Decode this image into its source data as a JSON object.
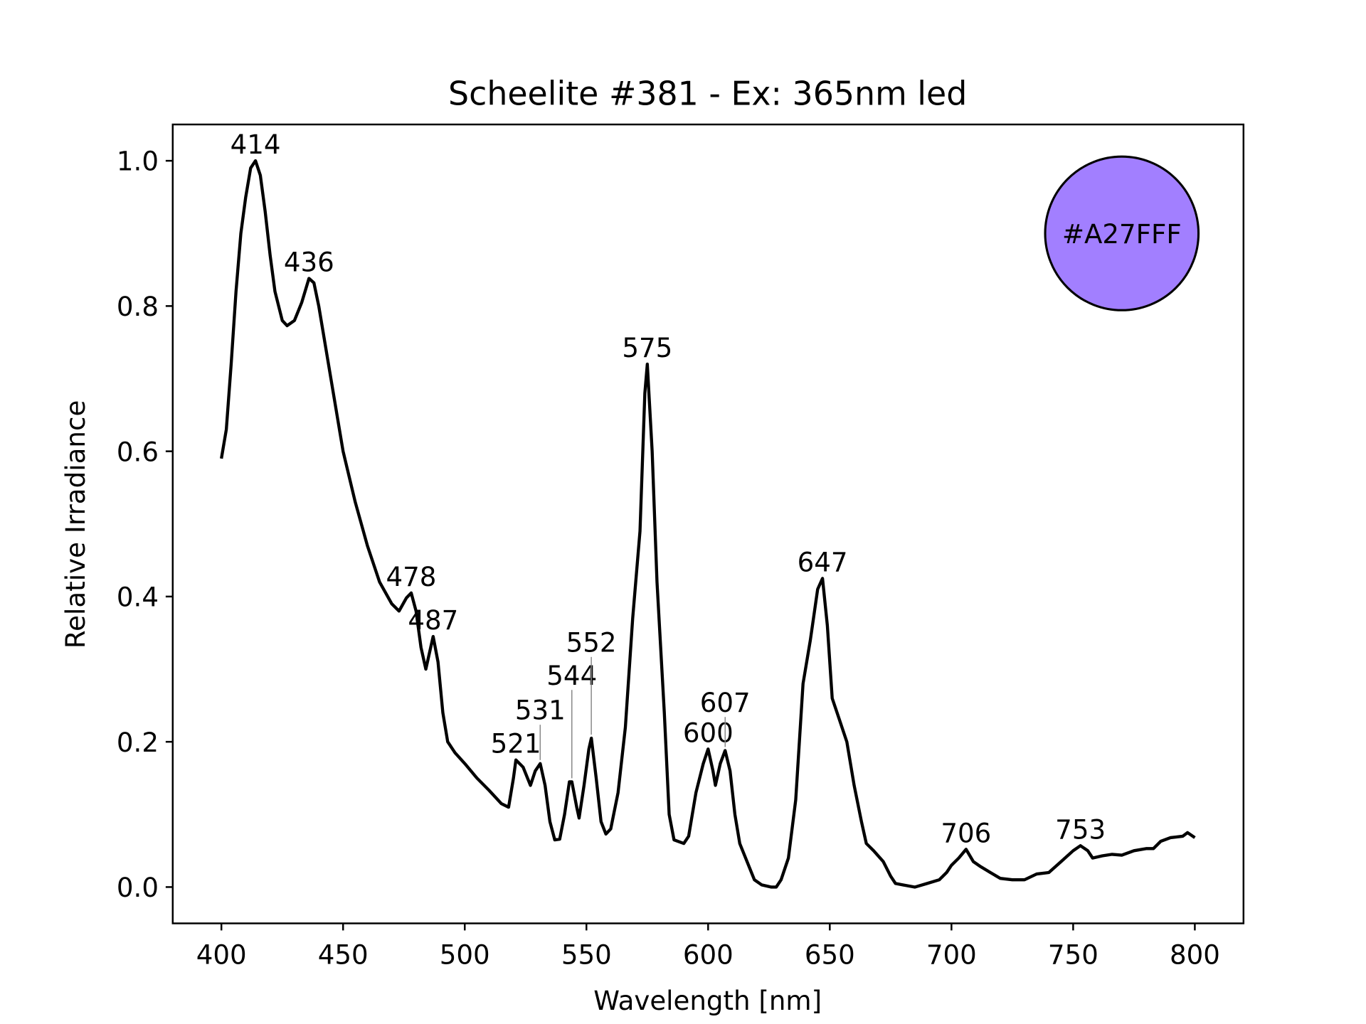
{
  "chart_data": {
    "type": "line",
    "title": "Scheelite #381 - Ex: 365nm led",
    "xlabel": "Wavelength [nm]",
    "ylabel": "Relative Irradiance",
    "xlim": [
      380,
      820
    ],
    "ylim": [
      -0.05,
      1.05
    ],
    "xticks": [
      400,
      450,
      500,
      550,
      600,
      650,
      700,
      750,
      800
    ],
    "xtick_labels": [
      "400",
      "450",
      "500",
      "550",
      "600",
      "650",
      "700",
      "750",
      "800"
    ],
    "yticks": [
      0.0,
      0.2,
      0.4,
      0.6,
      0.8,
      1.0
    ],
    "ytick_labels": [
      "0.0",
      "0.2",
      "0.4",
      "0.6",
      "0.8",
      "1.0"
    ],
    "grid": false,
    "line_color": "#000000",
    "series": [
      {
        "name": "spectrum",
        "x": [
          400,
          402,
          404,
          406,
          408,
          410,
          412,
          414,
          416,
          418,
          420,
          422,
          425,
          427,
          430,
          433,
          436,
          438,
          440,
          445,
          450,
          455,
          460,
          465,
          470,
          473,
          476,
          478,
          480,
          482,
          484,
          486,
          487,
          489,
          491,
          493,
          496,
          500,
          505,
          510,
          515,
          518,
          520,
          521,
          524,
          527,
          529,
          531,
          533,
          535,
          537,
          539,
          541,
          543,
          544,
          546,
          547,
          549,
          551,
          552,
          554,
          556,
          558,
          560,
          563,
          566,
          569,
          572,
          574,
          575,
          577,
          579,
          582,
          584,
          586,
          590,
          592,
          595,
          598,
          600,
          602,
          603,
          605,
          607,
          609,
          611,
          613,
          616,
          619,
          622,
          626,
          628,
          630,
          633,
          636,
          639,
          642,
          645,
          647,
          649,
          651,
          654,
          657,
          660,
          663,
          665,
          668,
          672,
          675,
          677,
          680,
          685,
          690,
          695,
          698,
          700,
          703,
          706,
          709,
          712,
          716,
          720,
          725,
          730,
          735,
          740,
          745,
          750,
          753,
          756,
          758,
          762,
          766,
          770,
          775,
          780,
          783,
          786,
          790,
          795,
          797,
          800
        ],
        "y": [
          0.59,
          0.63,
          0.72,
          0.82,
          0.9,
          0.95,
          0.99,
          1.0,
          0.98,
          0.93,
          0.87,
          0.82,
          0.78,
          0.773,
          0.78,
          0.805,
          0.838,
          0.832,
          0.8,
          0.7,
          0.6,
          0.53,
          0.47,
          0.42,
          0.39,
          0.38,
          0.398,
          0.405,
          0.38,
          0.33,
          0.3,
          0.33,
          0.345,
          0.31,
          0.24,
          0.2,
          0.185,
          0.17,
          0.15,
          0.133,
          0.115,
          0.11,
          0.15,
          0.175,
          0.165,
          0.14,
          0.16,
          0.17,
          0.14,
          0.09,
          0.065,
          0.066,
          0.1,
          0.145,
          0.145,
          0.11,
          0.095,
          0.14,
          0.19,
          0.205,
          0.15,
          0.09,
          0.073,
          0.08,
          0.13,
          0.22,
          0.37,
          0.49,
          0.68,
          0.72,
          0.6,
          0.42,
          0.24,
          0.1,
          0.065,
          0.06,
          0.07,
          0.13,
          0.17,
          0.19,
          0.16,
          0.14,
          0.17,
          0.188,
          0.16,
          0.1,
          0.06,
          0.035,
          0.01,
          0.003,
          0.0,
          0.0,
          0.01,
          0.04,
          0.12,
          0.28,
          0.34,
          0.41,
          0.425,
          0.36,
          0.26,
          0.23,
          0.2,
          0.14,
          0.09,
          0.06,
          0.05,
          0.035,
          0.015,
          0.005,
          0.003,
          0.0,
          0.005,
          0.01,
          0.02,
          0.03,
          0.04,
          0.052,
          0.035,
          0.028,
          0.02,
          0.012,
          0.01,
          0.01,
          0.018,
          0.02,
          0.035,
          0.05,
          0.057,
          0.05,
          0.04,
          0.043,
          0.045,
          0.044,
          0.05,
          0.053,
          0.053,
          0.063,
          0.068,
          0.07,
          0.075,
          0.068
        ]
      }
    ],
    "peaks": [
      {
        "x": 414,
        "y": 1.0,
        "label": "414"
      },
      {
        "x": 436,
        "y": 0.838,
        "label": "436"
      },
      {
        "x": 478,
        "y": 0.405,
        "label": "478"
      },
      {
        "x": 487,
        "y": 0.345,
        "label": "487"
      },
      {
        "x": 521,
        "y": 0.175,
        "label": "521"
      },
      {
        "x": 531,
        "y": 0.17,
        "label": "531"
      },
      {
        "x": 544,
        "y": 0.145,
        "label": "544"
      },
      {
        "x": 552,
        "y": 0.205,
        "label": "552"
      },
      {
        "x": 575,
        "y": 0.72,
        "label": "575"
      },
      {
        "x": 600,
        "y": 0.19,
        "label": "600"
      },
      {
        "x": 607,
        "y": 0.188,
        "label": "607"
      },
      {
        "x": 647,
        "y": 0.425,
        "label": "647"
      },
      {
        "x": 706,
        "y": 0.052,
        "label": "706"
      },
      {
        "x": 753,
        "y": 0.057,
        "label": "753"
      }
    ],
    "color_swatch": {
      "x": 770,
      "y": 0.9,
      "label": "#A27FFF",
      "fill": "#A27FFF"
    }
  }
}
